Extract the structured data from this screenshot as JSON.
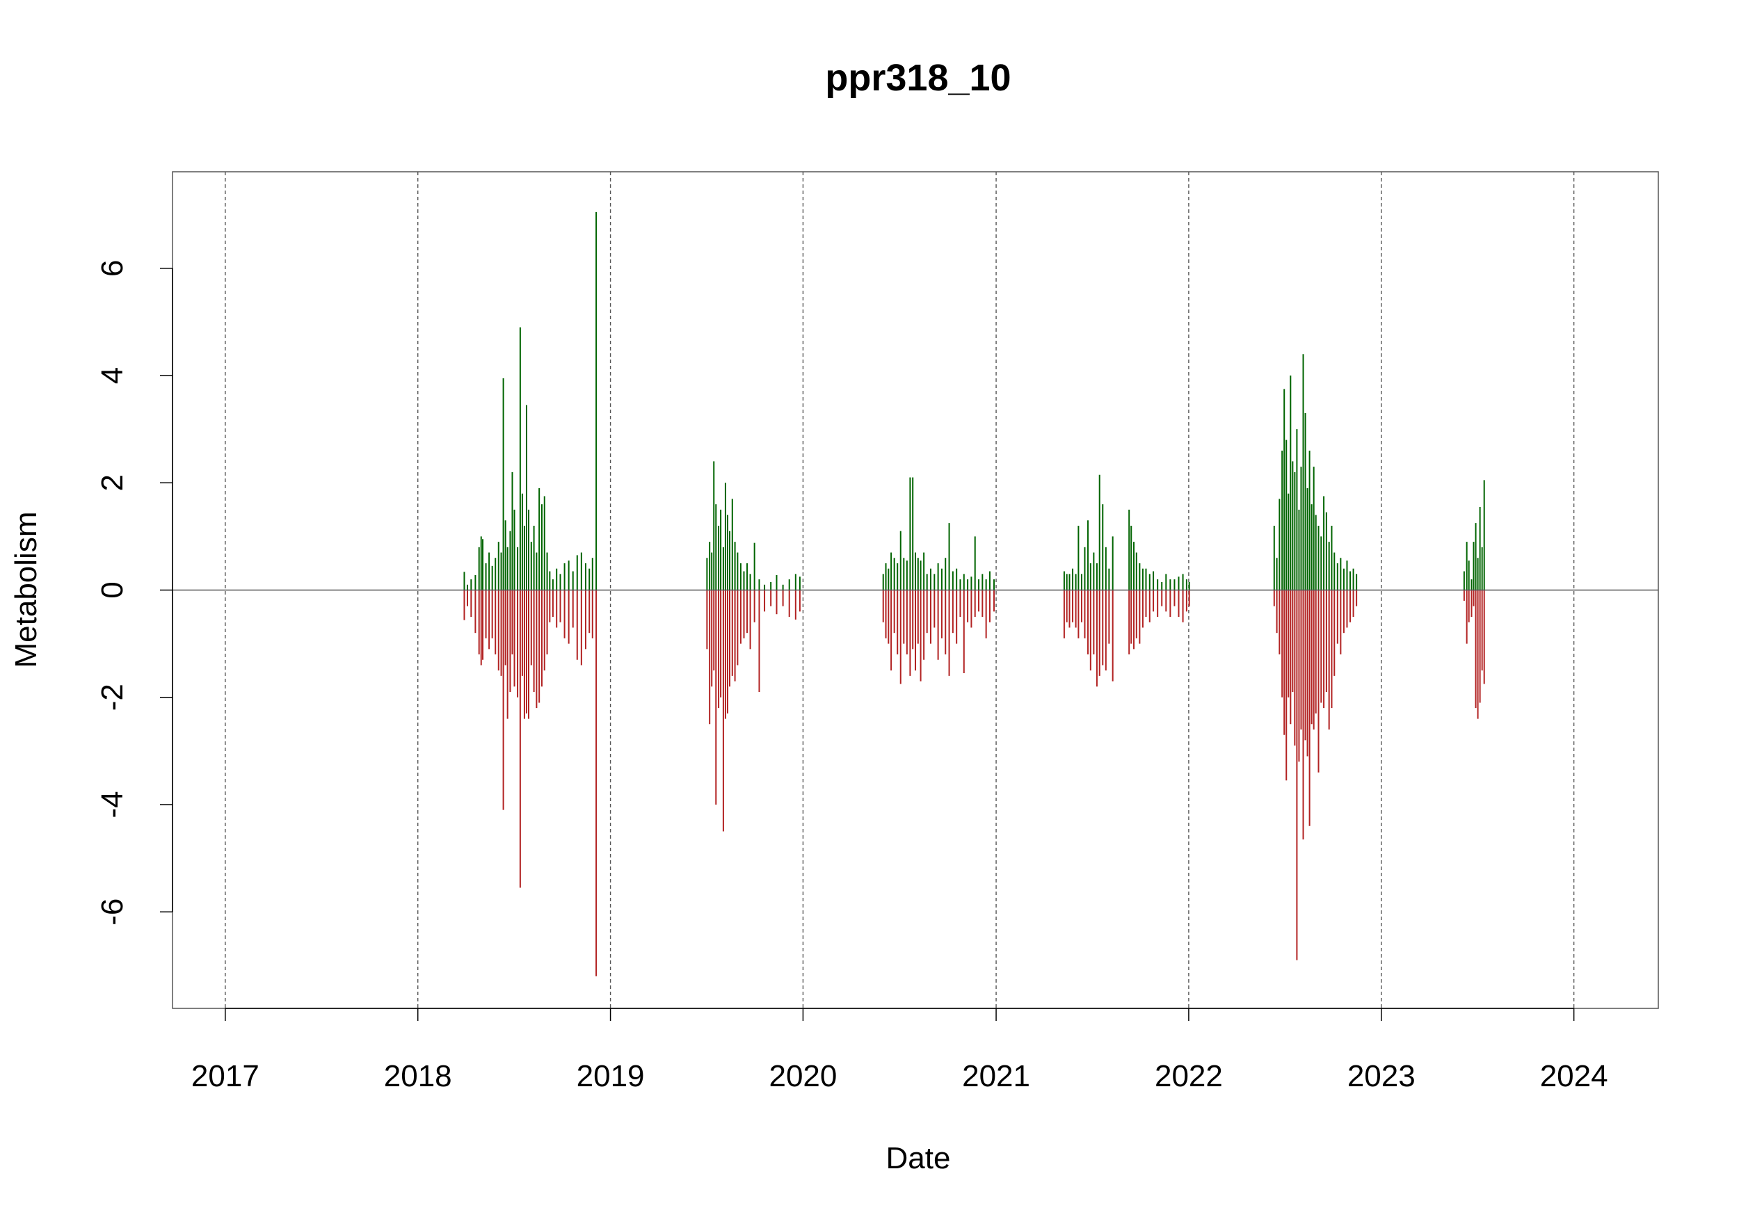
{
  "chart_data": {
    "type": "bar",
    "title": "ppr318_10",
    "xlabel": "Date",
    "ylabel": "Metabolism",
    "x_is_date": true,
    "xlim": [
      "2016-09-23",
      "2024-06-09"
    ],
    "ylim": [
      -7.8,
      7.8
    ],
    "x_ticks": [
      "2017",
      "2018",
      "2019",
      "2020",
      "2021",
      "2022",
      "2023",
      "2024"
    ],
    "y_ticks": [
      -6,
      -4,
      -2,
      0,
      2,
      4,
      6
    ],
    "grid": "vertical dashed at year starts",
    "zero_line": true,
    "legend": "none",
    "colors": {
      "positive": "#006400",
      "negative": "#B22222",
      "grid": "#555555",
      "frame": "#555555"
    },
    "series": [
      {
        "values": [
          [
            "2018-03-30",
            0.34,
            -0.56
          ],
          [
            "2018-04-05",
            0.1,
            -0.3
          ],
          [
            "2018-04-12",
            0.2,
            -0.5
          ],
          [
            "2018-04-20",
            0.28,
            -0.8
          ],
          [
            "2018-04-27",
            0.8,
            -1.2
          ],
          [
            "2018-05-01",
            1.0,
            -1.4
          ],
          [
            "2018-05-04",
            0.95,
            -1.3
          ],
          [
            "2018-05-10",
            0.5,
            -0.9
          ],
          [
            "2018-05-16",
            0.7,
            -1.1
          ],
          [
            "2018-05-22",
            0.45,
            -0.9
          ],
          [
            "2018-05-28",
            0.6,
            -1.2
          ],
          [
            "2018-06-03",
            0.9,
            -1.5
          ],
          [
            "2018-06-08",
            0.7,
            -1.6
          ],
          [
            "2018-06-12",
            3.95,
            -4.1
          ],
          [
            "2018-06-16",
            1.3,
            -1.4
          ],
          [
            "2018-06-20",
            0.8,
            -2.4
          ],
          [
            "2018-06-25",
            1.1,
            -1.9
          ],
          [
            "2018-06-29",
            2.2,
            -1.2
          ],
          [
            "2018-07-03",
            1.5,
            -1.8
          ],
          [
            "2018-07-09",
            0.8,
            -2.0
          ],
          [
            "2018-07-14",
            4.9,
            -5.55
          ],
          [
            "2018-07-18",
            1.8,
            -1.6
          ],
          [
            "2018-07-22",
            1.2,
            -2.4
          ],
          [
            "2018-07-26",
            3.45,
            -2.3
          ],
          [
            "2018-07-30",
            1.5,
            -2.4
          ],
          [
            "2018-08-04",
            0.9,
            -1.4
          ],
          [
            "2018-08-09",
            1.2,
            -1.9
          ],
          [
            "2018-08-14",
            0.7,
            -2.2
          ],
          [
            "2018-08-19",
            1.9,
            -2.1
          ],
          [
            "2018-08-24",
            1.6,
            -1.8
          ],
          [
            "2018-08-29",
            1.75,
            -1.5
          ],
          [
            "2018-09-03",
            0.7,
            -1.2
          ],
          [
            "2018-09-08",
            0.35,
            -0.6
          ],
          [
            "2018-09-14",
            0.2,
            -0.5
          ],
          [
            "2018-09-21",
            0.4,
            -0.7
          ],
          [
            "2018-09-28",
            0.3,
            -0.6
          ],
          [
            "2018-10-06",
            0.5,
            -0.9
          ],
          [
            "2018-10-14",
            0.55,
            -1.0
          ],
          [
            "2018-10-22",
            0.35,
            -0.7
          ],
          [
            "2018-10-30",
            0.65,
            -1.3
          ],
          [
            "2018-11-07",
            0.7,
            -1.4
          ],
          [
            "2018-11-15",
            0.5,
            -1.1
          ],
          [
            "2018-11-22",
            0.4,
            -0.8
          ],
          [
            "2018-11-28",
            0.6,
            -0.9
          ],
          [
            "2018-12-05",
            7.05,
            -7.2
          ],
          [
            "2019-07-03",
            0.6,
            -1.1
          ],
          [
            "2019-07-08",
            0.9,
            -2.5
          ],
          [
            "2019-07-12",
            0.7,
            -1.8
          ],
          [
            "2019-07-16",
            2.4,
            -1.5
          ],
          [
            "2019-07-20",
            1.6,
            -4.0
          ],
          [
            "2019-07-25",
            1.2,
            -2.2
          ],
          [
            "2019-07-29",
            1.5,
            -2.0
          ],
          [
            "2019-08-03",
            0.8,
            -4.5
          ],
          [
            "2019-08-07",
            2.0,
            -2.4
          ],
          [
            "2019-08-11",
            1.4,
            -2.3
          ],
          [
            "2019-08-15",
            1.1,
            -1.8
          ],
          [
            "2019-08-20",
            1.7,
            -1.6
          ],
          [
            "2019-08-25",
            0.9,
            -1.7
          ],
          [
            "2019-08-30",
            0.7,
            -1.4
          ],
          [
            "2019-09-05",
            0.5,
            -1.0
          ],
          [
            "2019-09-11",
            0.35,
            -0.9
          ],
          [
            "2019-09-17",
            0.5,
            -0.8
          ],
          [
            "2019-09-23",
            0.3,
            -1.1
          ],
          [
            "2019-10-01",
            0.88,
            -0.6
          ],
          [
            "2019-10-10",
            0.2,
            -1.9
          ],
          [
            "2019-10-20",
            0.1,
            -0.4
          ],
          [
            "2019-11-01",
            0.15,
            -0.3
          ],
          [
            "2019-11-12",
            0.28,
            -0.45
          ],
          [
            "2019-11-24",
            0.1,
            -0.3
          ],
          [
            "2019-12-06",
            0.2,
            -0.5
          ],
          [
            "2019-12-18",
            0.3,
            -0.55
          ],
          [
            "2019-12-26",
            0.25,
            -0.4
          ],
          [
            "2020-06-01",
            0.3,
            -0.6
          ],
          [
            "2020-06-06",
            0.5,
            -0.9
          ],
          [
            "2020-06-11",
            0.4,
            -1.0
          ],
          [
            "2020-06-16",
            0.7,
            -1.5
          ],
          [
            "2020-06-22",
            0.6,
            -0.8
          ],
          [
            "2020-06-28",
            0.5,
            -1.2
          ],
          [
            "2020-07-04",
            1.1,
            -1.75
          ],
          [
            "2020-07-10",
            0.6,
            -1.0
          ],
          [
            "2020-07-16",
            0.55,
            -1.2
          ],
          [
            "2020-07-22",
            2.1,
            -1.6
          ],
          [
            "2020-07-27",
            2.1,
            -1.1
          ],
          [
            "2020-08-01",
            0.7,
            -1.5
          ],
          [
            "2020-08-06",
            0.6,
            -1.0
          ],
          [
            "2020-08-11",
            0.55,
            -1.7
          ],
          [
            "2020-08-17",
            0.7,
            -1.3
          ],
          [
            "2020-08-23",
            0.3,
            -0.8
          ],
          [
            "2020-08-30",
            0.4,
            -1.0
          ],
          [
            "2020-09-06",
            0.3,
            -0.7
          ],
          [
            "2020-09-13",
            0.5,
            -1.3
          ],
          [
            "2020-09-20",
            0.4,
            -0.9
          ],
          [
            "2020-09-27",
            0.6,
            -1.2
          ],
          [
            "2020-10-04",
            1.25,
            -1.6
          ],
          [
            "2020-10-11",
            0.35,
            -0.8
          ],
          [
            "2020-10-18",
            0.4,
            -1.0
          ],
          [
            "2020-10-25",
            0.2,
            -0.5
          ],
          [
            "2020-11-01",
            0.3,
            -1.55
          ],
          [
            "2020-11-08",
            0.2,
            -0.6
          ],
          [
            "2020-11-15",
            0.25,
            -0.7
          ],
          [
            "2020-11-22",
            1.0,
            -0.5
          ],
          [
            "2020-11-29",
            0.2,
            -0.4
          ],
          [
            "2020-12-06",
            0.3,
            -0.5
          ],
          [
            "2020-12-13",
            0.2,
            -0.9
          ],
          [
            "2020-12-20",
            0.35,
            -0.6
          ],
          [
            "2020-12-28",
            0.2,
            -0.4
          ],
          [
            "2021-05-10",
            0.35,
            -0.9
          ],
          [
            "2021-05-15",
            0.3,
            -0.6
          ],
          [
            "2021-05-20",
            0.3,
            -0.7
          ],
          [
            "2021-05-26",
            0.4,
            -0.6
          ],
          [
            "2021-06-01",
            0.3,
            -0.7
          ],
          [
            "2021-06-06",
            1.2,
            -0.9
          ],
          [
            "2021-06-12",
            0.3,
            -0.6
          ],
          [
            "2021-06-18",
            0.8,
            -0.9
          ],
          [
            "2021-06-24",
            1.3,
            -1.2
          ],
          [
            "2021-06-29",
            0.5,
            -1.5
          ],
          [
            "2021-07-05",
            0.7,
            -1.2
          ],
          [
            "2021-07-11",
            0.5,
            -1.8
          ],
          [
            "2021-07-16",
            2.15,
            -1.6
          ],
          [
            "2021-07-22",
            1.6,
            -1.4
          ],
          [
            "2021-07-28",
            0.8,
            -1.5
          ],
          [
            "2021-08-03",
            0.4,
            -1.0
          ],
          [
            "2021-08-10",
            1.0,
            -1.7
          ],
          [
            "2021-09-10",
            1.5,
            -1.2
          ],
          [
            "2021-09-14",
            1.2,
            -1.0
          ],
          [
            "2021-09-19",
            0.9,
            -1.1
          ],
          [
            "2021-09-24",
            0.7,
            -0.9
          ],
          [
            "2021-09-30",
            0.5,
            -1.0
          ],
          [
            "2021-10-06",
            0.4,
            -0.7
          ],
          [
            "2021-10-12",
            0.4,
            -0.5
          ],
          [
            "2021-10-19",
            0.3,
            -0.6
          ],
          [
            "2021-10-26",
            0.35,
            -0.4
          ],
          [
            "2021-11-03",
            0.2,
            -0.5
          ],
          [
            "2021-11-11",
            0.15,
            -0.3
          ],
          [
            "2021-11-19",
            0.3,
            -0.4
          ],
          [
            "2021-11-27",
            0.2,
            -0.5
          ],
          [
            "2021-12-05",
            0.2,
            -0.3
          ],
          [
            "2021-12-13",
            0.25,
            -0.5
          ],
          [
            "2021-12-21",
            0.3,
            -0.6
          ],
          [
            "2021-12-28",
            0.2,
            -0.4
          ],
          [
            "2022-01-02",
            0.15,
            -0.3
          ],
          [
            "2022-06-12",
            1.2,
            -0.3
          ],
          [
            "2022-06-17",
            0.6,
            -0.8
          ],
          [
            "2022-06-22",
            1.7,
            -1.2
          ],
          [
            "2022-06-27",
            2.6,
            -2.0
          ],
          [
            "2022-07-01",
            3.75,
            -2.7
          ],
          [
            "2022-07-05",
            2.8,
            -3.55
          ],
          [
            "2022-07-09",
            1.8,
            -2.0
          ],
          [
            "2022-07-13",
            4.0,
            -2.5
          ],
          [
            "2022-07-17",
            2.4,
            -1.9
          ],
          [
            "2022-07-21",
            2.2,
            -2.9
          ],
          [
            "2022-07-25",
            3.0,
            -6.9
          ],
          [
            "2022-07-29",
            1.5,
            -3.2
          ],
          [
            "2022-08-02",
            2.3,
            -2.6
          ],
          [
            "2022-08-06",
            4.4,
            -4.65
          ],
          [
            "2022-08-10",
            3.3,
            -2.8
          ],
          [
            "2022-08-14",
            1.9,
            -3.1
          ],
          [
            "2022-08-18",
            2.6,
            -4.4
          ],
          [
            "2022-08-22",
            1.6,
            -2.5
          ],
          [
            "2022-08-26",
            2.3,
            -2.6
          ],
          [
            "2022-08-30",
            1.4,
            -2.3
          ],
          [
            "2022-09-04",
            1.2,
            -3.4
          ],
          [
            "2022-09-09",
            1.0,
            -2.1
          ],
          [
            "2022-09-14",
            1.75,
            -2.2
          ],
          [
            "2022-09-19",
            1.45,
            -1.9
          ],
          [
            "2022-09-24",
            0.9,
            -2.6
          ],
          [
            "2022-09-29",
            1.2,
            -2.2
          ],
          [
            "2022-10-04",
            0.7,
            -1.6
          ],
          [
            "2022-10-10",
            0.5,
            -1.0
          ],
          [
            "2022-10-16",
            0.6,
            -1.2
          ],
          [
            "2022-10-22",
            0.4,
            -0.8
          ],
          [
            "2022-10-28",
            0.55,
            -0.7
          ],
          [
            "2022-11-03",
            0.35,
            -0.6
          ],
          [
            "2022-11-09",
            0.4,
            -0.5
          ],
          [
            "2022-11-15",
            0.3,
            -0.3
          ],
          [
            "2023-06-07",
            0.35,
            -0.2
          ],
          [
            "2023-06-12",
            0.9,
            -1.0
          ],
          [
            "2023-06-16",
            0.55,
            -0.6
          ],
          [
            "2023-06-21",
            0.2,
            -0.5
          ],
          [
            "2023-06-25",
            0.9,
            -0.3
          ],
          [
            "2023-06-29",
            1.25,
            -2.2
          ],
          [
            "2023-07-03",
            0.6,
            -2.4
          ],
          [
            "2023-07-07",
            1.55,
            -2.1
          ],
          [
            "2023-07-11",
            0.8,
            -1.5
          ],
          [
            "2023-07-15",
            2.05,
            -1.75
          ]
        ]
      }
    ]
  }
}
